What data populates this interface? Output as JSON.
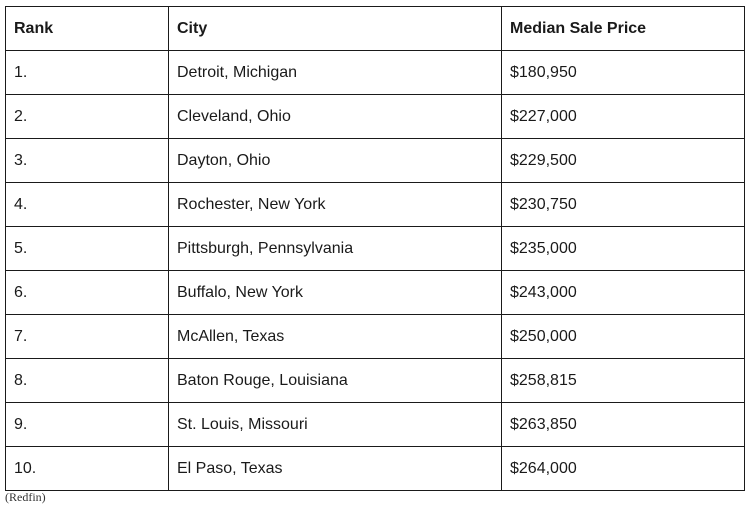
{
  "table": {
    "headers": [
      "Rank",
      "City",
      "Median Sale Price"
    ],
    "rows": [
      [
        "1.",
        "Detroit, Michigan",
        "$180,950"
      ],
      [
        "2.",
        "Cleveland, Ohio",
        "$227,000"
      ],
      [
        "3.",
        "Dayton, Ohio",
        "$229,500"
      ],
      [
        "4.",
        "Rochester, New York",
        "$230,750"
      ],
      [
        "5.",
        "Pittsburgh, Pennsylvania",
        "$235,000"
      ],
      [
        "6.",
        "Buffalo, New York",
        "$243,000"
      ],
      [
        "7.",
        "McAllen, Texas",
        "$250,000"
      ],
      [
        "8.",
        "Baton Rouge, Louisiana",
        "$258,815"
      ],
      [
        "9.",
        "St. Louis, Missouri",
        "$263,850"
      ],
      [
        "10.",
        "El Paso, Texas",
        "$264,000"
      ]
    ]
  },
  "source": "(Redfin)"
}
